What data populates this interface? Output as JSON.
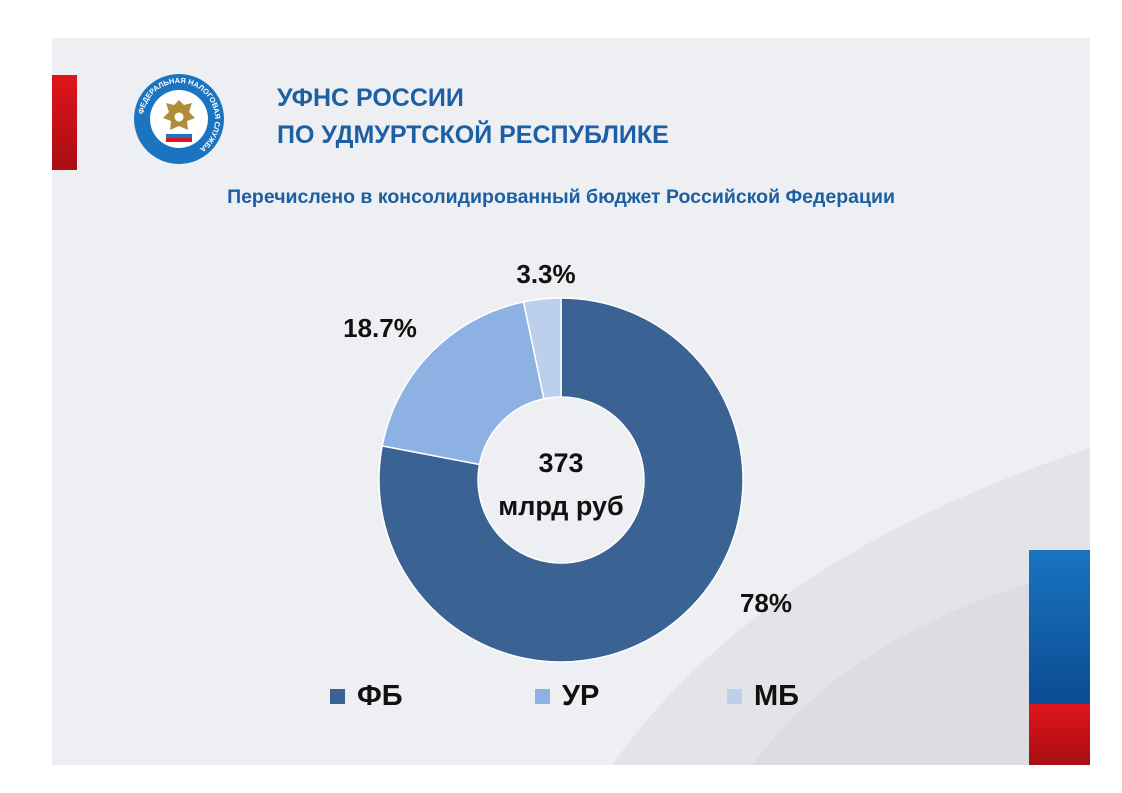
{
  "header": {
    "title_line1": "УФНС РОССИИ",
    "title_line2": "ПО УДМУРТСКОЙ РЕСПУБЛИКЕ",
    "emblem_text": "ФЕДЕРАЛЬНАЯ НАЛОГОВАЯ СЛУЖБА",
    "emblem_icon": "fns-emblem-icon"
  },
  "chart_data": {
    "type": "pie",
    "variant": "donut",
    "title": "Перечислено в консолидированный бюджет Российской Федерации",
    "center_label": {
      "value": "373",
      "unit": "млрд руб"
    },
    "categories": [
      "ФБ",
      "УР",
      "МБ"
    ],
    "values": [
      78,
      18.7,
      3.3
    ],
    "value_labels": [
      "78%",
      "18.7%",
      "3.3%"
    ],
    "colors": [
      "#3a6293",
      "#8db1e2",
      "#bccfec"
    ],
    "legend_position": "bottom"
  },
  "colors": {
    "title": "#1d5fa3",
    "accent_red": "#e0141b",
    "accent_blue": "#1a74bf",
    "background": "#eeeff2"
  }
}
